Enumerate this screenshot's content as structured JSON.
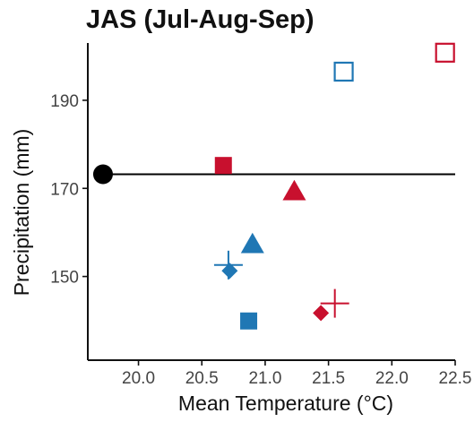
{
  "chart_data": {
    "type": "scatter",
    "title": "JAS (Jul-Aug-Sep)",
    "xlabel": "Mean Temperature (°C)",
    "ylabel": "Precipitation (mm)",
    "xlim": [
      19.6,
      22.5
    ],
    "ylim": [
      131,
      203
    ],
    "xticks": [
      "20.0",
      "20.5",
      "21.0",
      "21.5",
      "22.0",
      "22.5"
    ],
    "yticks": [
      "150",
      "170",
      "190"
    ],
    "grid": false,
    "legend": "none",
    "reference_line": {
      "y": 173.2,
      "from_x": 19.72,
      "to_x": 22.5,
      "color": "#000000"
    },
    "points": [
      {
        "x": 19.72,
        "y": 173.2,
        "shape": "circle",
        "color": "#000000"
      },
      {
        "x": 20.67,
        "y": 175.2,
        "shape": "square",
        "color": "#c8102e"
      },
      {
        "x": 21.23,
        "y": 169.3,
        "shape": "triangle",
        "color": "#c8102e"
      },
      {
        "x": 22.42,
        "y": 200.8,
        "shape": "square-open",
        "color": "#c8102e"
      },
      {
        "x": 21.44,
        "y": 141.7,
        "shape": "diamond",
        "color": "#c8102e"
      },
      {
        "x": 21.55,
        "y": 143.9,
        "shape": "plus",
        "color": "#c8102e"
      },
      {
        "x": 21.62,
        "y": 196.5,
        "shape": "square-open",
        "color": "#1f77b4"
      },
      {
        "x": 20.9,
        "y": 157.3,
        "shape": "triangle",
        "color": "#1f77b4"
      },
      {
        "x": 20.72,
        "y": 151.3,
        "shape": "diamond",
        "color": "#1f77b4"
      },
      {
        "x": 20.71,
        "y": 152.6,
        "shape": "plus",
        "color": "#1f77b4"
      },
      {
        "x": 20.87,
        "y": 139.9,
        "shape": "square",
        "color": "#1f77b4"
      }
    ]
  }
}
